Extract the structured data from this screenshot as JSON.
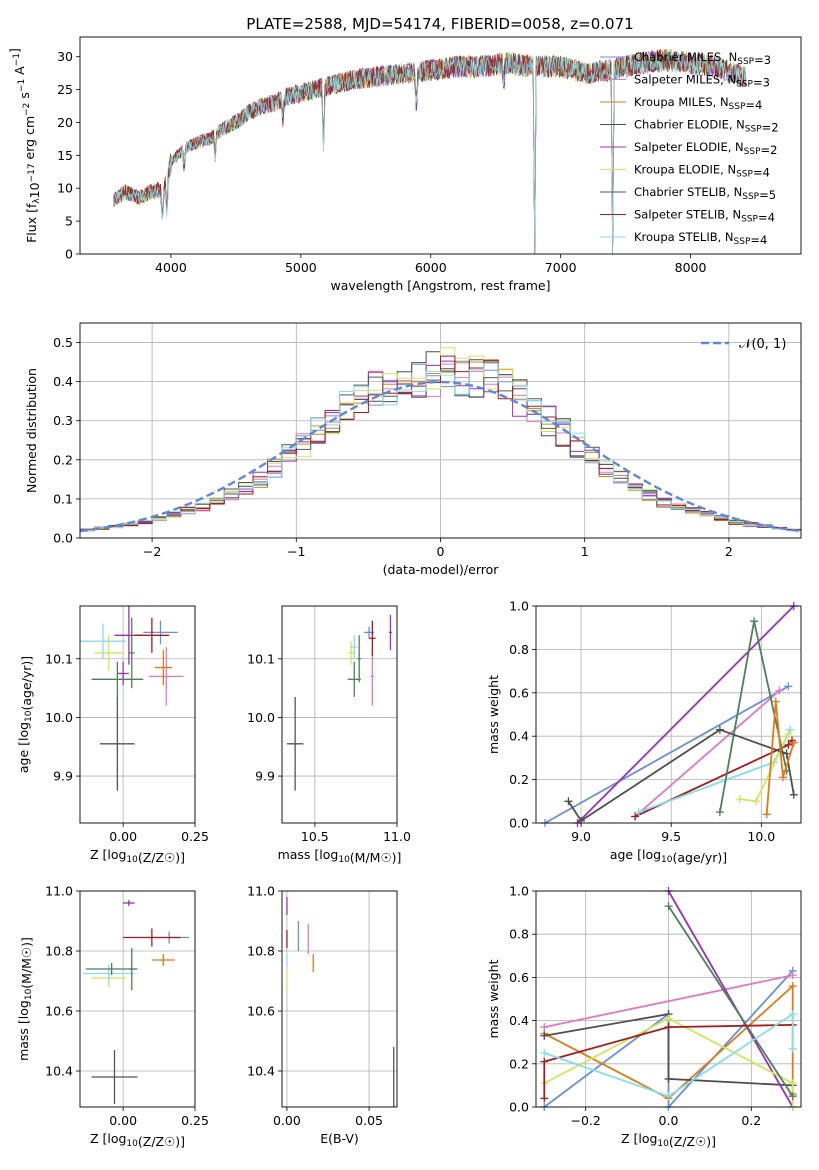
{
  "figure": {
    "title": "PLATE=2588, MJD=54174, FIBERID=0058, z=0.071"
  },
  "colors": {
    "c0": "#6a8fd8",
    "c1": "#e377c2",
    "c2": "#d4861f",
    "c3": "#4e4e4e",
    "c4": "#9b30b8",
    "c5": "#cde85a",
    "c6": "#555555",
    "c7": "#a51c1c",
    "c8": "#87dde8",
    "green": "#4f7f5a",
    "orange": "#e07b1a",
    "normal": "#5f87d8"
  },
  "chart_data": [
    {
      "id": "spectrum",
      "type": "line",
      "xlabel": "wavelength [Angstrom, rest frame]",
      "ylabel": "Flux [f_λ10^-17 erg cm^-2 s^-1 A^-1]",
      "xlim": [
        3300,
        8850
      ],
      "ylim": [
        0,
        33
      ],
      "xticks": [
        4000,
        5000,
        6000,
        7000,
        8000
      ],
      "yticks": [
        0,
        5,
        10,
        15,
        20,
        25,
        30
      ],
      "grid": false,
      "legend": "top-right",
      "series": [
        {
          "name": "Chabrier MILES, N_SSP=3",
          "color": "#6a8fd8"
        },
        {
          "name": "Salpeter MILES, N_SSP=3",
          "color": "#e377c2"
        },
        {
          "name": "Kroupa MILES, N_SSP=4",
          "color": "#d4861f"
        },
        {
          "name": "Chabrier ELODIE, N_SSP=2",
          "color": "#4e4e4e"
        },
        {
          "name": "Salpeter ELODIE, N_SSP=2",
          "color": "#9b30b8"
        },
        {
          "name": "Kroupa ELODIE, N_SSP=4",
          "color": "#cde85a"
        },
        {
          "name": "Chabrier STELIB, N_SSP=5",
          "color": "#555555"
        },
        {
          "name": "Salpeter STELIB, N_SSP=4",
          "color": "#a51c1c"
        },
        {
          "name": "Kroupa STELIB, N_SSP=4",
          "color": "#87dde8"
        }
      ],
      "continuum": {
        "x": [
          3550,
          3650,
          3750,
          3850,
          3950,
          4000,
          4100,
          4200,
          4300,
          4400,
          4500,
          4600,
          4700,
          4800,
          4900,
          5000,
          5200,
          5400,
          5600,
          5800,
          6000,
          6200,
          6400,
          6600,
          6800,
          7000,
          7200,
          7400,
          7600,
          7800,
          8000,
          8200,
          8400
        ],
        "y": [
          8,
          9.5,
          8.5,
          9.5,
          10,
          14,
          16,
          17,
          17.5,
          19,
          20,
          21.5,
          22.5,
          23,
          24,
          24.5,
          25.5,
          26.5,
          27,
          27.5,
          28,
          28.5,
          28.5,
          29,
          28.5,
          28.5,
          27.5,
          28,
          29,
          29.5,
          29,
          28.5,
          27
        ]
      }
    },
    {
      "id": "residuals",
      "type": "histogram",
      "xlabel": "(data-model)/error",
      "ylabel": "Normed distribution",
      "xlim": [
        -2.5,
        2.5
      ],
      "ylim": [
        0,
        0.55
      ],
      "xticks": [
        -2,
        -1,
        0,
        1,
        2
      ],
      "yticks": [
        0.0,
        0.1,
        0.2,
        0.3,
        0.4,
        0.5
      ],
      "grid": true,
      "legend": "top-right",
      "normal_label": "𝒩(0, 1)",
      "bin_edges": [
        -2.5,
        -2.4,
        -2.3,
        -2.2,
        -2.1,
        -2.0,
        -1.9,
        -1.8,
        -1.7,
        -1.6,
        -1.5,
        -1.4,
        -1.3,
        -1.2,
        -1.1,
        -1.0,
        -0.9,
        -0.8,
        -0.7,
        -0.6,
        -0.5,
        -0.4,
        -0.3,
        -0.2,
        -0.1,
        0.0,
        0.1,
        0.2,
        0.3,
        0.4,
        0.5,
        0.6,
        0.7,
        0.8,
        0.9,
        1.0,
        1.1,
        1.2,
        1.3,
        1.4,
        1.5,
        1.6,
        1.7,
        1.8,
        1.9,
        2.0,
        2.1,
        2.2,
        2.3,
        2.4,
        2.5
      ],
      "base_values": [
        0.02,
        0.025,
        0.03,
        0.035,
        0.04,
        0.05,
        0.06,
        0.07,
        0.08,
        0.09,
        0.11,
        0.13,
        0.15,
        0.18,
        0.21,
        0.24,
        0.27,
        0.3,
        0.33,
        0.36,
        0.38,
        0.39,
        0.4,
        0.41,
        0.42,
        0.43,
        0.42,
        0.41,
        0.4,
        0.38,
        0.36,
        0.33,
        0.3,
        0.27,
        0.24,
        0.21,
        0.18,
        0.15,
        0.13,
        0.11,
        0.09,
        0.08,
        0.07,
        0.06,
        0.05,
        0.04,
        0.035,
        0.03,
        0.025,
        0.02
      ]
    },
    {
      "id": "age_vs_Z",
      "type": "scatter",
      "xlabel": "Z [log10(Z/Z☉)]",
      "ylabel": "age  [log10(age/yr)]",
      "xlim": [
        -0.15,
        0.25
      ],
      "ylim": [
        9.82,
        10.19
      ],
      "xticks": [
        0.0,
        0.25
      ],
      "yticks": [
        9.9,
        10.0,
        10.1
      ],
      "grid": true,
      "points": [
        {
          "x": 0.13,
          "y": 10.145,
          "xerr": 0.06,
          "yerr": 0.02,
          "color": "#6a8fd8"
        },
        {
          "x": 0.15,
          "y": 10.07,
          "xerr": 0.06,
          "yerr": 0.05,
          "color": "#e377c2"
        },
        {
          "x": 0.14,
          "y": 10.085,
          "xerr": 0.03,
          "yerr": 0.03,
          "color": "#e07b1a"
        },
        {
          "x": 0.0,
          "y": 10.075,
          "xerr": 0.02,
          "yerr": 0.02,
          "color": "#9b30b8"
        },
        {
          "x": 0.02,
          "y": 10.14,
          "xerr": 0.05,
          "yerr": 0.05,
          "color": "#9b30b8"
        },
        {
          "x": -0.05,
          "y": 10.11,
          "xerr": 0.05,
          "yerr": 0.03,
          "color": "#cde85a"
        },
        {
          "x": -0.07,
          "y": 10.13,
          "xerr": 0.08,
          "yerr": 0.03,
          "color": "#87dde8"
        },
        {
          "x": 0.1,
          "y": 10.14,
          "xerr": 0.06,
          "yerr": 0.03,
          "color": "#a51c1c"
        },
        {
          "x": -0.02,
          "y": 10.065,
          "xerr": 0.09,
          "yerr": 0.03,
          "color": "#4f7f5a"
        },
        {
          "x": 0.03,
          "y": 10.11,
          "xerr": 0.01,
          "yerr": 0.06,
          "color": "#4f7f5a"
        },
        {
          "x": -0.02,
          "y": 9.955,
          "xerr": 0.06,
          "yerr": 0.08,
          "color": "#555555"
        }
      ]
    },
    {
      "id": "age_vs_mass",
      "type": "scatter",
      "xlabel": "mass [log10(M/M☉)]",
      "ylabel": "",
      "xlim": [
        10.3,
        11.0
      ],
      "ylim": [
        9.82,
        10.19
      ],
      "xticks": [
        10.5,
        11.0
      ],
      "yticks": [
        9.9,
        10.0,
        10.1
      ],
      "grid": true,
      "points": [
        {
          "x": 10.83,
          "y": 10.145,
          "xerr": 0.03,
          "yerr": 0.01,
          "color": "#6a8fd8"
        },
        {
          "x": 10.85,
          "y": 10.07,
          "xerr": 0.01,
          "yerr": 0.05,
          "color": "#e377c2"
        },
        {
          "x": 10.96,
          "y": 10.145,
          "xerr": 0.01,
          "yerr": 0.03,
          "color": "#9b30b8"
        },
        {
          "x": 10.72,
          "y": 10.11,
          "xerr": 0.02,
          "yerr": 0.02,
          "color": "#cde85a"
        },
        {
          "x": 10.74,
          "y": 10.12,
          "xerr": 0.02,
          "yerr": 0.02,
          "color": "#87dde8"
        },
        {
          "x": 10.85,
          "y": 10.135,
          "xerr": 0.02,
          "yerr": 0.03,
          "color": "#a51c1c"
        },
        {
          "x": 10.74,
          "y": 10.065,
          "xerr": 0.04,
          "yerr": 0.03,
          "color": "#4f7f5a"
        },
        {
          "x": 10.77,
          "y": 10.1,
          "xerr": 0.01,
          "yerr": 0.04,
          "color": "#4f7f5a"
        },
        {
          "x": 10.38,
          "y": 9.955,
          "xerr": 0.05,
          "yerr": 0.08,
          "color": "#555555"
        }
      ]
    },
    {
      "id": "weight_vs_age",
      "type": "line",
      "xlabel": "age  [log10(age/yr)]",
      "ylabel": "mass weight",
      "xlim": [
        8.75,
        10.22
      ],
      "ylim": [
        0.0,
        1.0
      ],
      "xticks": [
        9.0,
        9.5,
        10.0
      ],
      "yticks": [
        0.0,
        0.2,
        0.4,
        0.6,
        0.8,
        1.0
      ],
      "grid": true,
      "series": [
        {
          "color": "#6a8fd8",
          "x": [
            8.8,
            10.15
          ],
          "y": [
            0.0,
            0.63
          ]
        },
        {
          "color": "#9b30b8",
          "x": [
            8.98,
            10.18
          ],
          "y": [
            0.0,
            1.0
          ]
        },
        {
          "color": "#e377c2",
          "x": [
            9.3,
            10.1
          ],
          "y": [
            0.03,
            0.61
          ]
        },
        {
          "color": "#a51c1c",
          "x": [
            9.3,
            10.15,
            10.17
          ],
          "y": [
            0.03,
            0.36,
            0.38
          ]
        },
        {
          "color": "#87dde8",
          "x": [
            9.32,
            10.07,
            10.16
          ],
          "y": [
            0.05,
            0.28,
            0.43
          ]
        },
        {
          "color": "#cde85a",
          "x": [
            9.88,
            9.97,
            10.15
          ],
          "y": [
            0.11,
            0.1,
            0.41
          ]
        },
        {
          "color": "#4f7f5a",
          "x": [
            9.77,
            9.96,
            10.14
          ],
          "y": [
            0.05,
            0.93,
            0.24
          ]
        },
        {
          "color": "#4e4e4e",
          "x": [
            8.93,
            9.0,
            9.77,
            10.14,
            10.18
          ],
          "y": [
            0.1,
            0.01,
            0.43,
            0.32,
            0.13
          ]
        },
        {
          "color": "#e07b1a",
          "x": [
            10.03,
            10.08,
            10.12,
            10.18
          ],
          "y": [
            0.04,
            0.56,
            0.21,
            0.37
          ]
        }
      ]
    },
    {
      "id": "mass_vs_Z",
      "type": "scatter",
      "xlabel": "Z [log10(Z/Z☉)]",
      "ylabel": "mass [log10(M/M☉)]",
      "xlim": [
        -0.15,
        0.25
      ],
      "ylim": [
        10.28,
        11.0
      ],
      "xticks": [
        0.0,
        0.25
      ],
      "yticks": [
        10.4,
        10.6,
        10.8,
        11.0
      ],
      "grid": true,
      "points": [
        {
          "x": 0.16,
          "y": 10.845,
          "xerr": 0.07,
          "yerr": 0.02,
          "color": "#6a8fd8"
        },
        {
          "x": 0.14,
          "y": 10.77,
          "xerr": 0.04,
          "yerr": 0.02,
          "color": "#e07b1a"
        },
        {
          "x": 0.02,
          "y": 10.96,
          "xerr": 0.02,
          "yerr": 0.01,
          "color": "#9b30b8"
        },
        {
          "x": 0.1,
          "y": 10.845,
          "xerr": 0.1,
          "yerr": 0.03,
          "color": "#a51c1c"
        },
        {
          "x": -0.05,
          "y": 10.71,
          "xerr": 0.06,
          "yerr": 0.03,
          "color": "#cde85a"
        },
        {
          "x": -0.05,
          "y": 10.725,
          "xerr": 0.09,
          "yerr": 0.03,
          "color": "#87dde8"
        },
        {
          "x": -0.04,
          "y": 10.74,
          "xerr": 0.09,
          "yerr": 0.02,
          "color": "#4f7f5a"
        },
        {
          "x": 0.03,
          "y": 10.74,
          "xerr": 0.01,
          "yerr": 0.07,
          "color": "#4f7f5a"
        },
        {
          "x": -0.03,
          "y": 10.38,
          "xerr": 0.08,
          "yerr": 0.09,
          "color": "#555555"
        }
      ]
    },
    {
      "id": "mass_vs_EBV",
      "type": "scatter",
      "xlabel": "E(B-V)",
      "ylabel": "",
      "xlim": [
        -0.003,
        0.067
      ],
      "ylim": [
        10.28,
        11.0
      ],
      "xticks": [
        0.0,
        0.05
      ],
      "yticks": [
        10.4,
        10.6,
        10.8,
        11.0
      ],
      "grid": true,
      "points": [
        {
          "x": 0.0,
          "y": 10.95,
          "xerr": 0.0,
          "yerr": 0.03,
          "color": "#9b30b8"
        },
        {
          "x": 0.0,
          "y": 10.84,
          "xerr": 0.0,
          "yerr": 0.03,
          "color": "#a51c1c"
        },
        {
          "x": 0.0,
          "y": 10.77,
          "xerr": 0.0,
          "yerr": 0.02,
          "color": "#87dde8"
        },
        {
          "x": 0.0,
          "y": 10.7,
          "xerr": 0.0,
          "yerr": 0.03,
          "color": "#cde85a"
        },
        {
          "x": 0.007,
          "y": 10.85,
          "xerr": 0.0,
          "yerr": 0.05,
          "color": "#6a8fd8"
        },
        {
          "x": 0.013,
          "y": 10.84,
          "xerr": 0.0,
          "yerr": 0.05,
          "color": "#e377c2"
        },
        {
          "x": 0.016,
          "y": 10.76,
          "xerr": 0.0,
          "yerr": 0.03,
          "color": "#e07b1a"
        },
        {
          "x": 0.065,
          "y": 10.38,
          "xerr": 0.0,
          "yerr": 0.1,
          "color": "#555555"
        }
      ]
    },
    {
      "id": "weight_vs_Z",
      "type": "line",
      "xlabel": "Z [log10(Z/Z☉)]",
      "ylabel": "mass weight",
      "xlim": [
        -0.32,
        0.32
      ],
      "ylim": [
        0.0,
        1.0
      ],
      "xticks": [
        -0.2,
        0.0,
        0.2
      ],
      "yticks": [
        0.0,
        0.2,
        0.4,
        0.6,
        0.8,
        1.0
      ],
      "grid": true,
      "series": [
        {
          "color": "#6a8fd8",
          "x": [
            -0.3,
            0.0,
            0.0,
            0.3
          ],
          "y": [
            0.0,
            0.43,
            0.0,
            0.63
          ]
        },
        {
          "color": "#e377c2",
          "x": [
            -0.3,
            0.3
          ],
          "y": [
            0.37,
            0.61
          ]
        },
        {
          "color": "#e07b1a",
          "x": [
            -0.3,
            0.0,
            0.3,
            0.3
          ],
          "y": [
            0.34,
            0.04,
            0.56,
            0.06
          ]
        },
        {
          "color": "#4e4e4e",
          "x": [
            -0.3,
            0.0,
            0.0,
            0.3
          ],
          "y": [
            0.33,
            0.43,
            0.13,
            0.1
          ]
        },
        {
          "color": "#9b30b8",
          "x": [
            0.0,
            0.3
          ],
          "y": [
            1.0,
            0.0
          ]
        },
        {
          "color": "#cde85a",
          "x": [
            -0.3,
            0.0,
            0.3,
            0.3
          ],
          "y": [
            0.11,
            0.41,
            0.11,
            0.0
          ]
        },
        {
          "color": "#4f7f5a",
          "x": [
            0.0,
            0.3
          ],
          "y": [
            0.93,
            0.05
          ]
        },
        {
          "color": "#a51c1c",
          "x": [
            -0.3,
            -0.3,
            0.0,
            0.3
          ],
          "y": [
            0.04,
            0.21,
            0.37,
            0.38
          ]
        },
        {
          "color": "#87dde8",
          "x": [
            -0.3,
            0.0,
            0.3,
            0.3
          ],
          "y": [
            0.25,
            0.05,
            0.43,
            0.27
          ]
        }
      ]
    }
  ]
}
